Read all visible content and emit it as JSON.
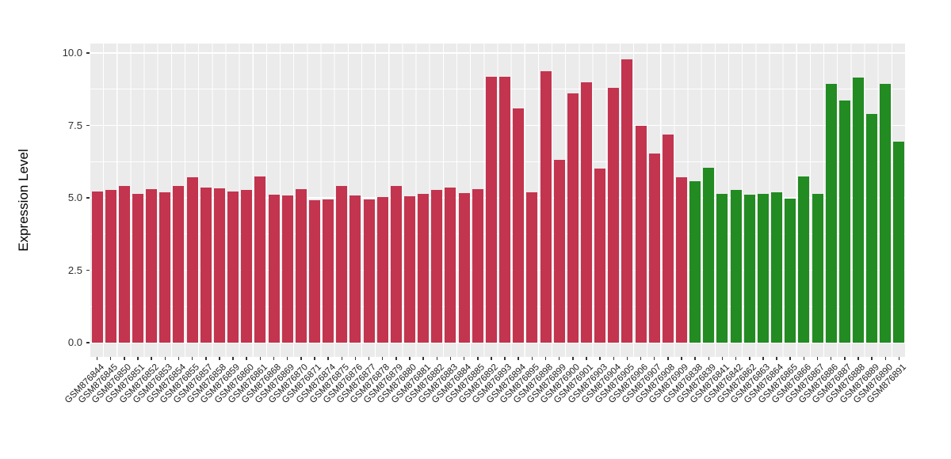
{
  "figure": {
    "background": "#FFFFFF",
    "panel_background": "#EBEBEB",
    "grid_color": "#FFFFFF",
    "tick_color": "#333333",
    "axis_text_color": "#303030"
  },
  "chart_data": {
    "type": "bar",
    "title": "",
    "xlabel": "",
    "ylabel": "Expression Level",
    "ylim": [
      0,
      10
    ],
    "grid": true,
    "legend_position": "none",
    "ytick_labels": [
      "0.0",
      "2.5",
      "5.0",
      "7.5",
      "10.0"
    ],
    "ytick_values": [
      0,
      2.5,
      5,
      7.5,
      10
    ],
    "minor_tick_values": [
      1.25,
      3.75,
      6.25,
      8.75
    ],
    "group_colors": {
      "red": "#C3344F",
      "green": "#228B22"
    },
    "categories": [
      "GSM876844",
      "GSM876845",
      "GSM876850",
      "GSM876851",
      "GSM876852",
      "GSM876853",
      "GSM876854",
      "GSM876855",
      "GSM876857",
      "GSM876858",
      "GSM876859",
      "GSM876860",
      "GSM876861",
      "GSM876868",
      "GSM876869",
      "GSM876870",
      "GSM876871",
      "GSM876874",
      "GSM876875",
      "GSM876876",
      "GSM876877",
      "GSM876878",
      "GSM876879",
      "GSM876880",
      "GSM876881",
      "GSM876882",
      "GSM876883",
      "GSM876884",
      "GSM876885",
      "GSM876892",
      "GSM876893",
      "GSM876894",
      "GSM876895",
      "GSM876898",
      "GSM876899",
      "GSM876900",
      "GSM876901",
      "GSM876903",
      "GSM876904",
      "GSM876905",
      "GSM876906",
      "GSM876907",
      "GSM876908",
      "GSM876909",
      "GSM876838",
      "GSM876839",
      "GSM876841",
      "GSM876842",
      "GSM876862",
      "GSM876863",
      "GSM876864",
      "GSM876865",
      "GSM876866",
      "GSM876867",
      "GSM876886",
      "GSM876887",
      "GSM876888",
      "GSM876889",
      "GSM876890",
      "GSM876891"
    ],
    "values": [
      5.21,
      5.26,
      5.42,
      5.15,
      5.29,
      5.18,
      5.4,
      5.72,
      5.36,
      5.33,
      5.21,
      5.28,
      5.73,
      5.12,
      5.07,
      5.29,
      4.93,
      4.95,
      5.42,
      5.08,
      4.95,
      5.03,
      5.4,
      5.06,
      5.13,
      5.27,
      5.35,
      5.17,
      5.29,
      9.19,
      9.17,
      8.1,
      5.2,
      9.37,
      6.32,
      8.6,
      8.99,
      6.02,
      8.79,
      9.78,
      7.49,
      6.52,
      7.19,
      5.72,
      5.58,
      6.05,
      5.15,
      5.28,
      5.12,
      5.14,
      5.2,
      4.98,
      5.73,
      5.14,
      8.94,
      8.35,
      9.16,
      7.89,
      8.94,
      6.94
    ],
    "groups": [
      "red",
      "red",
      "red",
      "red",
      "red",
      "red",
      "red",
      "red",
      "red",
      "red",
      "red",
      "red",
      "red",
      "red",
      "red",
      "red",
      "red",
      "red",
      "red",
      "red",
      "red",
      "red",
      "red",
      "red",
      "red",
      "red",
      "red",
      "red",
      "red",
      "red",
      "red",
      "red",
      "red",
      "red",
      "red",
      "red",
      "red",
      "red",
      "red",
      "red",
      "red",
      "red",
      "red",
      "red",
      "green",
      "green",
      "green",
      "green",
      "green",
      "green",
      "green",
      "green",
      "green",
      "green",
      "green",
      "green",
      "green",
      "green",
      "green",
      "green"
    ]
  }
}
